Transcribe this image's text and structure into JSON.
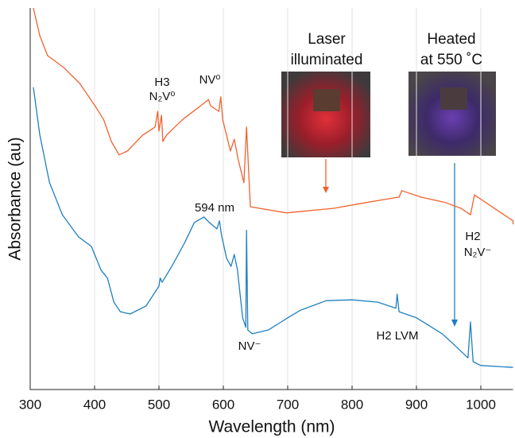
{
  "chart_data": {
    "type": "line",
    "xlabel": "Wavelength (nm)",
    "ylabel": "Absorbance (au)",
    "xlim": [
      300,
      1050
    ],
    "xticks": [
      300,
      400,
      500,
      600,
      700,
      800,
      900,
      1000
    ],
    "ylim": [
      0,
      1
    ],
    "grid": true,
    "series": [
      {
        "color": "#f0622f",
        "x": [
          305,
          315,
          327,
          352,
          377,
          402,
          414,
          426,
          438,
          451,
          475,
          494,
          498,
          500,
          504,
          506,
          512,
          537,
          562,
          577,
          580,
          593,
          596,
          599,
          611,
          617,
          623,
          632,
          636,
          642,
          698,
          772,
          822,
          871,
          873,
          877,
          908,
          945,
          969,
          984,
          986,
          990,
          1050,
          1050
        ],
        "values": [
          1.0,
          0.927,
          0.875,
          0.844,
          0.802,
          0.74,
          0.708,
          0.65,
          0.615,
          0.625,
          0.667,
          0.688,
          0.729,
          0.677,
          0.719,
          0.65,
          0.667,
          0.708,
          0.74,
          0.76,
          0.744,
          0.729,
          0.767,
          0.708,
          0.625,
          0.656,
          0.604,
          0.542,
          0.688,
          0.479,
          0.463,
          0.475,
          0.49,
          0.504,
          0.504,
          0.521,
          0.504,
          0.49,
          0.475,
          0.458,
          0.475,
          0.51,
          0.442,
          0.433
        ]
      },
      {
        "color": "#1f7fc0",
        "x": [
          305,
          315,
          330,
          350,
          375,
          395,
          410,
          420,
          430,
          440,
          455,
          480,
          500,
          502,
          505,
          520,
          540,
          555,
          570,
          578,
          590,
          594,
          597,
          605,
          612,
          617,
          622,
          630,
          635,
          636,
          638,
          645,
          670,
          690,
          700,
          720,
          760,
          800,
          840,
          868,
          870,
          873,
          900,
          920,
          940,
          960,
          980,
          984,
          988,
          1000,
          1050
        ],
        "values": [
          0.792,
          0.667,
          0.542,
          0.458,
          0.4,
          0.375,
          0.313,
          0.292,
          0.229,
          0.204,
          0.198,
          0.219,
          0.271,
          0.292,
          0.281,
          0.323,
          0.385,
          0.438,
          0.452,
          0.438,
          0.421,
          0.442,
          0.406,
          0.344,
          0.323,
          0.354,
          0.313,
          0.188,
          0.163,
          0.417,
          0.156,
          0.146,
          0.156,
          0.177,
          0.188,
          0.208,
          0.233,
          0.235,
          0.229,
          0.213,
          0.25,
          0.204,
          0.188,
          0.167,
          0.146,
          0.115,
          0.083,
          0.177,
          0.073,
          0.063,
          0.058
        ]
      }
    ],
    "annotations": [
      "H3",
      "N₂V⁰",
      "NV⁰",
      "594 nm",
      "NV⁻",
      "H2 LVM",
      "H2",
      "N₂V⁻",
      "Laser",
      "illuminated",
      "Heated",
      "at 550 ˚C"
    ]
  }
}
